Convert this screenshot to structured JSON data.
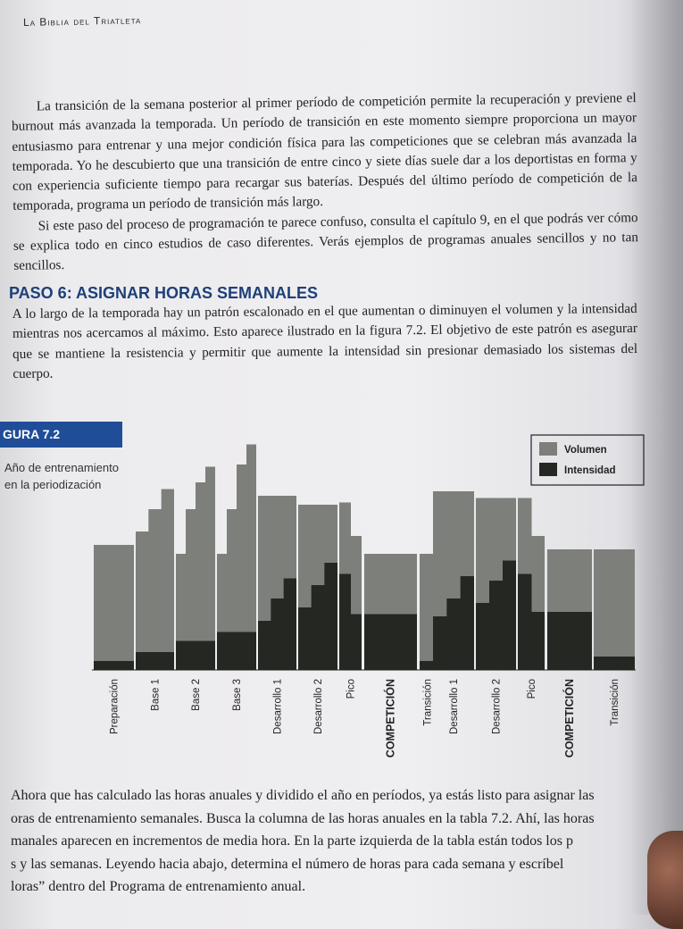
{
  "running_head": "La Biblia del Triatleta",
  "intro_paragraphs": [
    "La transición de la semana posterior al primer período de competición permite la recuperación y previene el burnout más avanzada la temporada. Un período de transición en este momento siempre proporciona un mayor entusiasmo para entrenar y una mejor condición física para las competiciones que se celebran más avanzada la temporada. Yo he descubierto que una transición de entre cinco y siete días suele dar a los deportistas en forma y con experiencia suficiente tiempo para recargar sus baterías. Después del último período de competición de la temporada, programa un período de transición más largo.",
    "Si este paso del proceso de programación te parece confuso, consulta el capítulo 9, en el que podrás ver cómo se explica todo en cinco estudios de caso diferentes. Verás ejemplos de programas anuales sencillos y no tan sencillos."
  ],
  "section_heading": "PASO 6: ASIGNAR HORAS SEMANALES",
  "section_paragraph": "A lo largo de la temporada hay un patrón escalonado en el que aumentan o diminuyen el volumen y la intensidad mientras nos acercamos al máximo. Esto aparece ilustrado en la figura 7.2. El objetivo de este patrón es asegurar que se mantiene la resistencia y permitir que aumente la intensidad sin presionar demasiado los sistemas del cuerpo.",
  "figure": {
    "label": "GURA 7.2",
    "caption": "Año de entrenamiento en la periodización"
  },
  "chart_data": {
    "type": "bar",
    "title": "",
    "legend": {
      "placement": "top-right",
      "entries": [
        "Volumen",
        "Intensidad"
      ]
    },
    "colors": {
      "Volumen": "#7d7f7b",
      "Intensidad": "#252822"
    },
    "categories": [
      "Preparación",
      "Base 1",
      "Base 2",
      "Base 3",
      "Desarrollo 1",
      "Desarrollo 2",
      "Pico",
      "COMPETICIÓN",
      "Transición",
      "Desarrollo 1",
      "Desarrollo 2",
      "Pico",
      "COMPETICIÓN",
      "Transición"
    ],
    "bold_categories": [
      "COMPETICIÓN"
    ],
    "series": [
      {
        "name": "Volumen",
        "values": [
          [
            56
          ],
          [
            62,
            72,
            81
          ],
          [
            52,
            72,
            84,
            91
          ],
          [
            52,
            72,
            92,
            101
          ],
          [
            78
          ],
          [
            74
          ],
          [
            75,
            60
          ],
          [
            52
          ],
          [
            52
          ],
          [
            80
          ],
          [
            77
          ],
          [
            77,
            60
          ],
          [
            54
          ],
          [
            54
          ]
        ]
      },
      {
        "name": "Intensidad",
        "values": [
          [
            4
          ],
          [
            8
          ],
          [
            13
          ],
          [
            17
          ],
          [
            22,
            32,
            41
          ],
          [
            28,
            38,
            48
          ],
          [
            43,
            25
          ],
          [
            25
          ],
          [
            4
          ],
          [
            24,
            32,
            42
          ],
          [
            30,
            40,
            49
          ],
          [
            43,
            26
          ],
          [
            26
          ],
          [
            6
          ]
        ]
      }
    ]
  },
  "closing_lines": [
    "Ahora que has calculado las horas anuales y dividido el año en períodos, ya estás listo para asignar las",
    "oras de entrenamiento semanales. Busca la columna de las horas anuales en la tabla 7.2. Ahí, las horas",
    "manales aparecen en incrementos de media hora. En la parte izquierda de la tabla están todos los p",
    "s y las semanas. Leyendo hacia abajo, determina el número de horas para cada semana y escríbel",
    "loras” dentro del Programa de entrenamiento anual."
  ]
}
